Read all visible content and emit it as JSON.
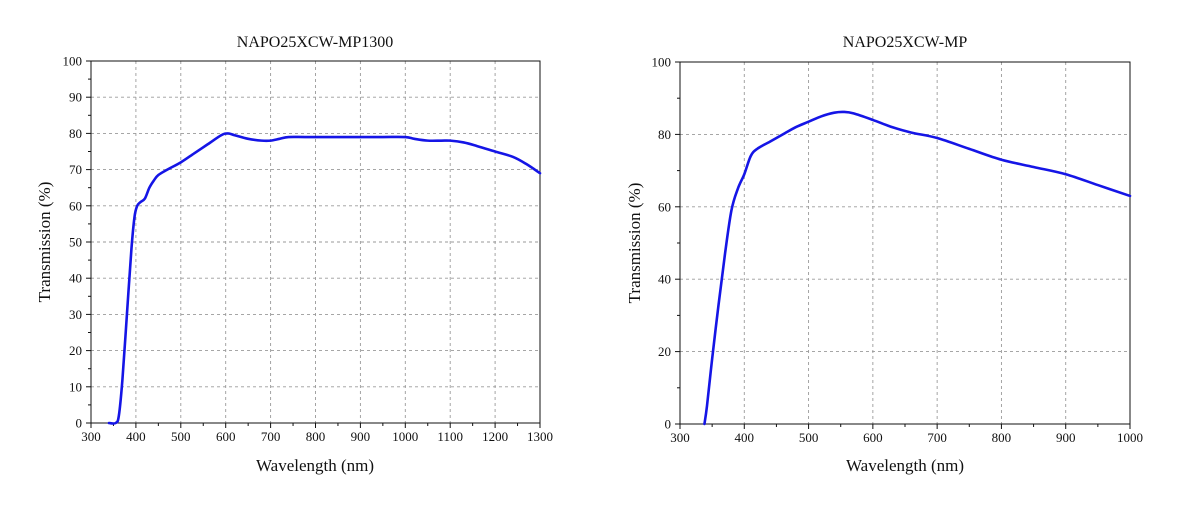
{
  "colors": {
    "curve": "#1515e6"
  },
  "chart_data": [
    {
      "type": "line",
      "title": "NAPO25XCW-MP1300",
      "xlabel": "Wavelength (nm)",
      "ylabel": "Transmission (%)",
      "xlim": [
        300,
        1300
      ],
      "ylim": [
        0,
        100
      ],
      "xticks": [
        "300",
        "400",
        "500",
        "600",
        "700",
        "800",
        "900",
        "1000",
        "1100",
        "1200",
        "1300"
      ],
      "yticks": [
        "0",
        "10",
        "20",
        "30",
        "40",
        "50",
        "60",
        "70",
        "80",
        "90",
        "100"
      ],
      "grid": true,
      "series": [
        {
          "name": "NAPO25XCW-MP1300",
          "x": [
            340,
            355,
            362,
            370,
            380,
            390,
            397,
            403,
            410,
            420,
            430,
            440,
            450,
            470,
            500,
            530,
            560,
            590,
            605,
            620,
            650,
            680,
            700,
            720,
            740,
            780,
            850,
            900,
            950,
            1000,
            1020,
            1050,
            1080,
            1100,
            1130,
            1160,
            1200,
            1240,
            1270,
            1300
          ],
          "y": [
            0,
            0,
            2,
            12,
            30,
            48,
            57,
            60,
            61,
            62,
            65,
            67,
            68.5,
            70,
            72,
            74.5,
            77,
            79.5,
            80,
            79.5,
            78.5,
            78,
            78,
            78.5,
            79,
            79,
            79,
            79,
            79,
            79,
            78.5,
            78,
            78,
            78,
            77.5,
            76.5,
            75,
            73.5,
            71.5,
            69
          ]
        }
      ]
    },
    {
      "type": "line",
      "title": "NAPO25XCW-MP",
      "xlabel": "Wavelength (nm)",
      "ylabel": "Transmission (%)",
      "xlim": [
        300,
        1000
      ],
      "ylim": [
        0,
        100
      ],
      "xticks": [
        "300",
        "400",
        "500",
        "600",
        "700",
        "800",
        "900",
        "1000"
      ],
      "yticks": [
        "0",
        "20",
        "40",
        "60",
        "80",
        "100"
      ],
      "grid": true,
      "series": [
        {
          "name": "NAPO25XCW-MP",
          "x": [
            338,
            342,
            350,
            360,
            370,
            380,
            390,
            400,
            410,
            420,
            440,
            460,
            480,
            500,
            520,
            540,
            555,
            570,
            600,
            630,
            660,
            700,
            750,
            800,
            850,
            900,
            950,
            1000
          ],
          "y": [
            0,
            5,
            18,
            33,
            47,
            59,
            65,
            69,
            74,
            76,
            78,
            80,
            82,
            83.5,
            85,
            86,
            86.2,
            85.8,
            84,
            82,
            80.5,
            79,
            76,
            73,
            71,
            69,
            66,
            63
          ]
        }
      ]
    }
  ]
}
